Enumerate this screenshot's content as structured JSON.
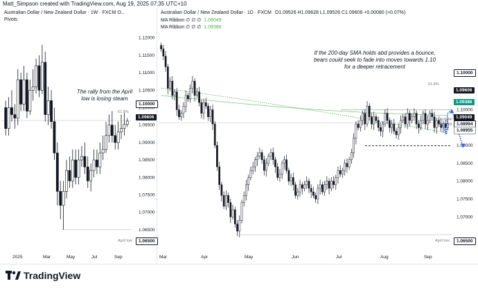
{
  "header": "Matt_Simpson created with TradingView.com, Aug 19, 2025 07:35 UTC+10",
  "left": {
    "title": "Australian Dollar / New Zealand Dollar · 1W · FXCM  O...",
    "subtitle": "Pivots",
    "annotation_line1": "The rally from the April",
    "annotation_line2": "low is losing steam",
    "fib_label": "61.8%",
    "low_label": "April low",
    "badges": {
      "upper": "1.10000",
      "price": "1.09606",
      "low": "1.06500"
    }
  },
  "right": {
    "title_name": "Australian Dollar / New Zealand Dollar · 1D · FXCM",
    "title_ohlc": "O1.09526  H1.09628  L1.09526  C1.09606  +0.00080 (+0.07%)",
    "ribbon1_label": "MA Ribbon  ∅  ∅  ∅",
    "ribbon1_value": "1.09049",
    "ribbon2_label": "MA Ribbon  ∅  ∅  ∅",
    "ribbon2_value": "1.09386",
    "annotation_line1": "If the 200-day SMA holds abd provides a bounce,",
    "annotation_line2": "bears could seek to fade into moves towards 1.10",
    "annotation_line3": "for a deeper retracement",
    "fib_label": "61.8%",
    "low_label": "April low",
    "avwap_label": "AVWAP",
    "aug_low_label": "Aug low",
    "badges": {
      "b1": "1.10000",
      "b2": "1.09606",
      "b3": "1.09386",
      "b4": "1.09049",
      "b5": "1.08994",
      "b6": "1.08955",
      "b7": "1.06500"
    }
  },
  "footer": {
    "brand": "TradingView"
  },
  "colors": {
    "green": "#089981",
    "red": "#f23645",
    "ma_green": "#4caf50",
    "dark": "#131722",
    "blue": "#2962ff"
  },
  "chart_data": [
    {
      "type": "candlestick",
      "title": "Australian Dollar / New Zealand Dollar · 1W · FXCM",
      "ylim": [
        1.061,
        1.1245
      ],
      "yticks": [
        "1.12000",
        "1.11500",
        "1.11000",
        "1.10500",
        "1.10000",
        "1.09500",
        "1.09000",
        "1.08500",
        "1.08000",
        "1.07500",
        "1.07000",
        "1.06500"
      ],
      "xlabels": [
        "2025",
        "Mar",
        "May",
        "Jul",
        "Sep"
      ],
      "levels": {
        "fib_61_8": 1.0963,
        "april_low": 1.065
      },
      "x": [
        0,
        1,
        2,
        3,
        4,
        5,
        6,
        7,
        8,
        9,
        10,
        11,
        12,
        13,
        14,
        15,
        16,
        17,
        18,
        19,
        20,
        21,
        22,
        23,
        24,
        25,
        26,
        27,
        28,
        29,
        30,
        31,
        32,
        33,
        34,
        35,
        36,
        37,
        38,
        39,
        40
      ],
      "open": [
        1.1,
        1.094,
        1.1,
        1.098,
        1.097,
        1.108,
        1.101,
        1.108,
        1.099,
        1.105,
        1.106,
        1.112,
        1.105,
        1.113,
        1.098,
        1.102,
        1.096,
        1.087,
        1.076,
        1.072,
        1.076,
        1.082,
        1.079,
        1.085,
        1.08,
        1.085,
        1.086,
        1.083,
        1.079,
        1.082,
        1.085,
        1.083,
        1.087,
        1.088,
        1.092,
        1.095,
        1.092,
        1.09,
        1.093,
        1.094,
        1.0952
      ],
      "close": [
        1.094,
        1.1,
        1.098,
        1.097,
        1.108,
        1.101,
        1.108,
        1.099,
        1.105,
        1.106,
        1.112,
        1.105,
        1.113,
        1.098,
        1.102,
        1.096,
        1.087,
        1.076,
        1.072,
        1.076,
        1.082,
        1.079,
        1.085,
        1.08,
        1.085,
        1.086,
        1.083,
        1.079,
        1.082,
        1.085,
        1.083,
        1.087,
        1.088,
        1.092,
        1.095,
        1.092,
        1.09,
        1.093,
        1.094,
        1.0952,
        1.0961
      ],
      "high": [
        1.102,
        1.103,
        1.105,
        1.101,
        1.111,
        1.11,
        1.112,
        1.11,
        1.108,
        1.111,
        1.114,
        1.115,
        1.118,
        1.116,
        1.106,
        1.105,
        1.1,
        1.09,
        1.079,
        1.079,
        1.085,
        1.086,
        1.088,
        1.088,
        1.088,
        1.089,
        1.09,
        1.086,
        1.084,
        1.088,
        1.088,
        1.09,
        1.092,
        1.096,
        1.098,
        1.099,
        1.095,
        1.096,
        1.098,
        1.0985,
        1.097
      ],
      "low": [
        1.092,
        1.092,
        1.096,
        1.094,
        1.095,
        1.099,
        1.099,
        1.097,
        1.098,
        1.102,
        1.104,
        1.103,
        1.104,
        1.096,
        1.095,
        1.094,
        1.085,
        1.072,
        1.068,
        1.065,
        1.074,
        1.077,
        1.077,
        1.078,
        1.078,
        1.083,
        1.081,
        1.077,
        1.076,
        1.08,
        1.081,
        1.081,
        1.085,
        1.087,
        1.09,
        1.09,
        1.088,
        1.088,
        1.091,
        1.092,
        1.0945
      ]
    },
    {
      "type": "candlestick",
      "title": "Australian Dollar / New Zealand Dollar · 1D · FXCM",
      "ylim": [
        1.0625,
        1.1245
      ],
      "yticks": [
        "1.11000",
        "1.10500",
        "1.10000",
        "1.09500",
        "1.09000",
        "1.08500",
        "1.08000",
        "1.07500",
        "1.07000"
      ],
      "xlabels": [
        "Mar",
        "Apr",
        "May",
        "Jun",
        "Jul",
        "Aug",
        "Sep"
      ],
      "levels": {
        "fib_61_8": 1.0963,
        "april_low": 1.065,
        "target": 1.1,
        "aug_low": 1.0899
      },
      "x": [
        0,
        1,
        2,
        3,
        4,
        5,
        6,
        7,
        8,
        9,
        10,
        11,
        12,
        13,
        14,
        15,
        16,
        17,
        18,
        19,
        20,
        21,
        22,
        23,
        24,
        25,
        26,
        27,
        28,
        29,
        30,
        31,
        32,
        33,
        34,
        35,
        36,
        37,
        38,
        39,
        40,
        41,
        42,
        43,
        44,
        45,
        46,
        47,
        48,
        49,
        50,
        51,
        52,
        53,
        54,
        55,
        56,
        57,
        58,
        59,
        60,
        61,
        62,
        63,
        64,
        65,
        66,
        67,
        68,
        69,
        70,
        71,
        72,
        73,
        74,
        75,
        76,
        77,
        78,
        79,
        80,
        81,
        82,
        83,
        84,
        85,
        86,
        87,
        88,
        89,
        90,
        91,
        92,
        93,
        94,
        95,
        96,
        97,
        98,
        99,
        100,
        101,
        102,
        103,
        104,
        105,
        106,
        107,
        108,
        109,
        110,
        111,
        112,
        113,
        114,
        115,
        116,
        117,
        118,
        119,
        120,
        121,
        122,
        123,
        124,
        125,
        126,
        127,
        128
      ],
      "close": [
        1.117,
        1.115,
        1.112,
        1.106,
        1.108,
        1.104,
        1.105,
        1.1,
        1.098,
        1.099,
        1.101,
        1.104,
        1.103,
        1.106,
        1.108,
        1.104,
        1.105,
        1.102,
        1.099,
        1.102,
        1.101,
        1.098,
        1.1,
        1.096,
        1.09,
        1.084,
        1.079,
        1.076,
        1.073,
        1.076,
        1.074,
        1.07,
        1.072,
        1.068,
        1.066,
        1.069,
        1.074,
        1.076,
        1.079,
        1.081,
        1.083,
        1.084,
        1.086,
        1.087,
        1.088,
        1.086,
        1.083,
        1.085,
        1.087,
        1.088,
        1.086,
        1.084,
        1.081,
        1.082,
        1.085,
        1.086,
        1.083,
        1.08,
        1.081,
        1.079,
        1.076,
        1.077,
        1.079,
        1.078,
        1.079,
        1.08,
        1.078,
        1.077,
        1.076,
        1.075,
        1.078,
        1.079,
        1.077,
        1.079,
        1.08,
        1.078,
        1.08,
        1.079,
        1.081,
        1.083,
        1.082,
        1.083,
        1.085,
        1.084,
        1.086,
        1.088,
        1.092,
        1.096,
        1.095,
        1.097,
        1.099,
        1.096,
        1.101,
        1.098,
        1.096,
        1.098,
        1.097,
        1.095,
        1.094,
        1.096,
        1.099,
        1.097,
        1.095,
        1.096,
        1.094,
        1.093,
        1.095,
        1.097,
        1.098,
        1.096,
        1.099,
        1.097,
        1.098,
        1.099,
        1.096,
        1.095,
        1.097,
        1.099,
        1.096,
        1.097,
        1.099,
        1.098,
        1.095,
        1.097,
        1.096,
        1.095,
        1.0961,
        1.095,
        1.0961
      ]
    }
  ]
}
